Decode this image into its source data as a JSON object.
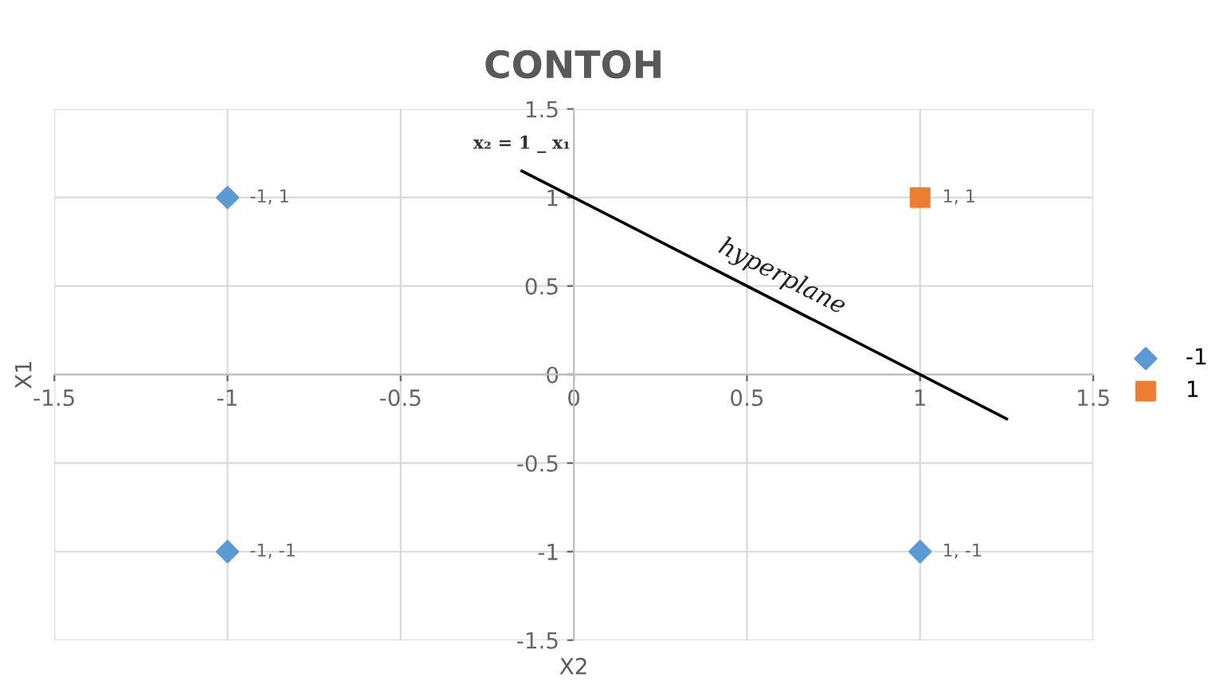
{
  "chart_data": {
    "type": "scatter",
    "title": "CONTOH",
    "xlabel": "X2",
    "ylabel": "X1",
    "xlim": [
      -1.5,
      1.5
    ],
    "ylim": [
      -1.5,
      1.5
    ],
    "xticks": [
      -1.5,
      -1,
      -0.5,
      0,
      0.5,
      1,
      1.5
    ],
    "yticks": [
      -1.5,
      -1,
      -0.5,
      0,
      0.5,
      1,
      1.5
    ],
    "grid": true,
    "legend": "right",
    "series": [
      {
        "name": "-1",
        "color": "#5b9bd5",
        "marker": "diamond",
        "x": [
          -1,
          -1,
          1
        ],
        "values": [
          1,
          -1,
          -1
        ]
      },
      {
        "name": "1",
        "color": "#ed7d31",
        "marker": "square",
        "x": [
          1
        ],
        "values": [
          1
        ]
      },
      {
        "type": "line",
        "color": "#000000",
        "marker": "none",
        "x": [
          -0.15,
          1.25
        ],
        "values": [
          1.15,
          -0.25
        ]
      }
    ],
    "annotations": [
      {
        "text": "-1, 1",
        "x": -1,
        "y": 1
      },
      {
        "text": "1, 1",
        "x": 1,
        "y": 1
      },
      {
        "text": "-1, -1",
        "x": -1,
        "y": -1
      },
      {
        "text": "1, -1",
        "x": 1,
        "y": -1
      },
      {
        "text": "x₂ = 1 _ x₁",
        "x": -0.15,
        "y": 1.15
      },
      {
        "text": "hyperplane",
        "x": 0.55,
        "y": 0.45
      }
    ]
  }
}
